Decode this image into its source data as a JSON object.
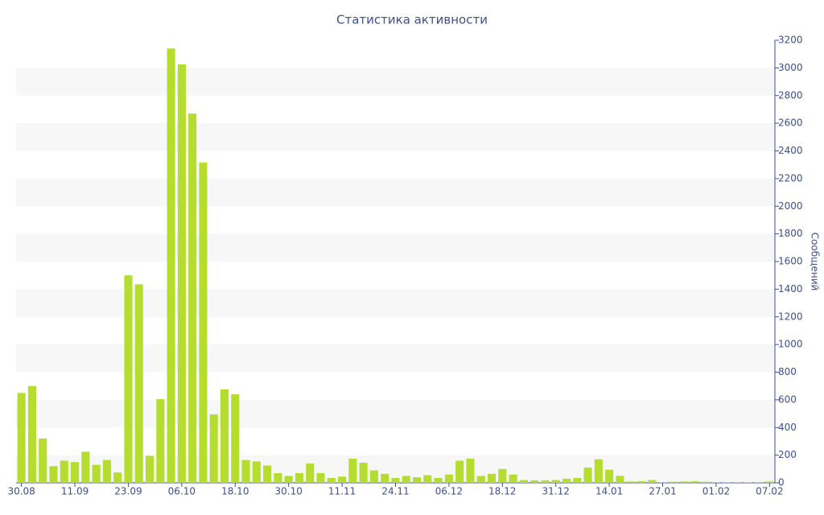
{
  "chart_data": {
    "type": "bar",
    "title": "Статистика активности",
    "y_label": "Сообщений",
    "categories": [
      "30.08",
      null,
      null,
      null,
      null,
      "11.09",
      null,
      null,
      null,
      null,
      "23.09",
      null,
      null,
      null,
      null,
      "06.10",
      null,
      null,
      null,
      null,
      "18.10",
      null,
      null,
      null,
      null,
      "30.10",
      null,
      null,
      null,
      null,
      "11.11",
      null,
      null,
      null,
      null,
      "24.11",
      null,
      null,
      null,
      null,
      "06.12",
      null,
      null,
      null,
      null,
      "18.12",
      null,
      null,
      null,
      null,
      "31.12",
      null,
      null,
      null,
      null,
      "14.01",
      null,
      null,
      null,
      null,
      "27.01",
      null,
      null,
      null,
      null,
      "01.02",
      null,
      null,
      null,
      null,
      "07.02"
    ],
    "values": [
      650,
      700,
      320,
      120,
      160,
      150,
      225,
      130,
      165,
      75,
      1500,
      1435,
      195,
      605,
      3140,
      3025,
      2670,
      2315,
      495,
      675,
      640,
      165,
      155,
      125,
      70,
      50,
      70,
      140,
      70,
      35,
      45,
      175,
      145,
      90,
      65,
      35,
      50,
      40,
      55,
      35,
      60,
      160,
      175,
      50,
      65,
      100,
      60,
      20,
      18,
      18,
      20,
      30,
      35,
      110,
      170,
      95,
      50,
      10,
      12,
      20,
      5,
      8,
      10,
      12,
      8,
      5,
      5,
      5,
      5,
      5,
      10
    ],
    "color": "#b5dd2f",
    "ylim": [
      0,
      3200
    ],
    "yticks": [
      0,
      200,
      400,
      600,
      800,
      1000,
      1200,
      1400,
      1600,
      1800,
      2000,
      2200,
      2400,
      2600,
      2800,
      3000,
      3200
    ],
    "y_axis_side": "right",
    "grid": "alternate-bands"
  }
}
